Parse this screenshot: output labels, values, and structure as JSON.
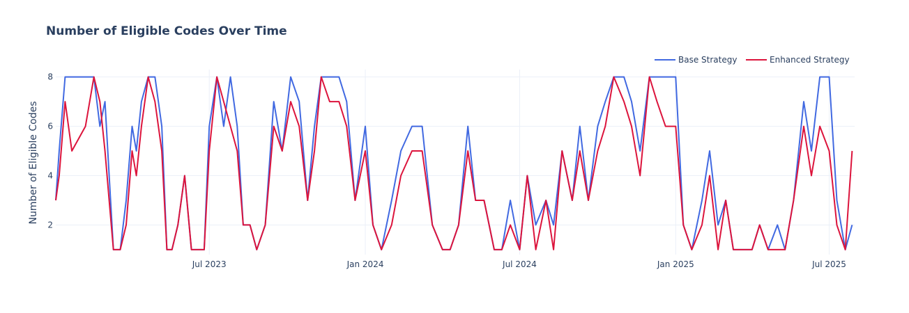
{
  "chart_data": {
    "type": "line",
    "title": "Number of Eligible Codes Over Time",
    "xlabel": "",
    "ylabel": "Number of Eligible Codes",
    "xlim": [
      "2023-01-01",
      "2025-07-31"
    ],
    "ylim": [
      0.8,
      8.3
    ],
    "x_ticks": [
      "Jul 2023",
      "Jan 2024",
      "Jul 2024",
      "Jan 2025",
      "Jul 2025"
    ],
    "y_ticks": [
      "2",
      "4",
      "6",
      "8"
    ],
    "grid": true,
    "legend_position": "top-right",
    "series": [
      {
        "name": "Base Strategy",
        "color": "#4169e1",
        "x": [
          "2023-01-01",
          "2023-01-05",
          "2023-01-12",
          "2023-01-20",
          "2023-02-05",
          "2023-02-15",
          "2023-02-22",
          "2023-02-28",
          "2023-03-05",
          "2023-03-10",
          "2023-03-18",
          "2023-03-25",
          "2023-04-01",
          "2023-04-06",
          "2023-04-12",
          "2023-04-20",
          "2023-04-28",
          "2023-05-06",
          "2023-05-12",
          "2023-05-18",
          "2023-05-25",
          "2023-06-02",
          "2023-06-10",
          "2023-06-18",
          "2023-06-25",
          "2023-07-01",
          "2023-07-10",
          "2023-07-18",
          "2023-07-26",
          "2023-08-03",
          "2023-08-10",
          "2023-08-18",
          "2023-08-26",
          "2023-09-05",
          "2023-09-15",
          "2023-09-25",
          "2023-10-05",
          "2023-10-15",
          "2023-10-25",
          "2023-11-02",
          "2023-11-10",
          "2023-11-20",
          "2023-12-01",
          "2023-12-10",
          "2023-12-20",
          "2024-01-01",
          "2024-01-10",
          "2024-01-20",
          "2024-02-01",
          "2024-02-12",
          "2024-02-25",
          "2024-03-08",
          "2024-03-20",
          "2024-04-01",
          "2024-04-10",
          "2024-04-20",
          "2024-05-01",
          "2024-05-10",
          "2024-05-20",
          "2024-06-01",
          "2024-06-10",
          "2024-06-20",
          "2024-07-01",
          "2024-07-10",
          "2024-07-20",
          "2024-08-01",
          "2024-08-10",
          "2024-08-20",
          "2024-09-01",
          "2024-09-10",
          "2024-09-20",
          "2024-10-01",
          "2024-10-10",
          "2024-10-20",
          "2024-11-01",
          "2024-11-10",
          "2024-11-20",
          "2024-12-01",
          "2024-12-10",
          "2024-12-20",
          "2025-01-01",
          "2025-01-10",
          "2025-01-20",
          "2025-02-01",
          "2025-02-10",
          "2025-02-20",
          "2025-03-01",
          "2025-03-10",
          "2025-03-20",
          "2025-04-01",
          "2025-04-10",
          "2025-04-20",
          "2025-05-01",
          "2025-05-10",
          "2025-05-20",
          "2025-06-01",
          "2025-06-10",
          "2025-06-20",
          "2025-07-01",
          "2025-07-10",
          "2025-07-20",
          "2025-07-28"
        ],
        "values": [
          3,
          5,
          8,
          8,
          8,
          8,
          6,
          7,
          4,
          1,
          1,
          3,
          6,
          5,
          7,
          8,
          8,
          6,
          1,
          1,
          2,
          4,
          1,
          1,
          1,
          6,
          8,
          6,
          8,
          6,
          2,
          2,
          1,
          2,
          7,
          5,
          8,
          7,
          3,
          6,
          8,
          8,
          8,
          7,
          3,
          6,
          2,
          1,
          3,
          5,
          6,
          6,
          2,
          1,
          1,
          2,
          6,
          3,
          3,
          1,
          1,
          3,
          1,
          4,
          2,
          3,
          2,
          5,
          3,
          6,
          3,
          6,
          7,
          8,
          8,
          7,
          5,
          8,
          8,
          8,
          8,
          2,
          1,
          3,
          5,
          2,
          3,
          1,
          1,
          1,
          2,
          1,
          2,
          1,
          3,
          7,
          5,
          8,
          8,
          3,
          1,
          2
        ]
      },
      {
        "name": "Enhanced Strategy",
        "color": "#dc143c",
        "x": [
          "2023-01-01",
          "2023-01-05",
          "2023-01-12",
          "2023-01-20",
          "2023-02-05",
          "2023-02-15",
          "2023-02-22",
          "2023-02-28",
          "2023-03-05",
          "2023-03-10",
          "2023-03-18",
          "2023-03-25",
          "2023-04-01",
          "2023-04-06",
          "2023-04-12",
          "2023-04-20",
          "2023-04-28",
          "2023-05-06",
          "2023-05-12",
          "2023-05-18",
          "2023-05-25",
          "2023-06-02",
          "2023-06-10",
          "2023-06-18",
          "2023-06-25",
          "2023-07-01",
          "2023-07-10",
          "2023-07-18",
          "2023-07-26",
          "2023-08-03",
          "2023-08-10",
          "2023-08-18",
          "2023-08-26",
          "2023-09-05",
          "2023-09-15",
          "2023-09-25",
          "2023-10-05",
          "2023-10-15",
          "2023-10-25",
          "2023-11-02",
          "2023-11-10",
          "2023-11-20",
          "2023-12-01",
          "2023-12-10",
          "2023-12-20",
          "2024-01-01",
          "2024-01-10",
          "2024-01-20",
          "2024-02-01",
          "2024-02-12",
          "2024-02-25",
          "2024-03-08",
          "2024-03-20",
          "2024-04-01",
          "2024-04-10",
          "2024-04-20",
          "2024-05-01",
          "2024-05-10",
          "2024-05-20",
          "2024-06-01",
          "2024-06-10",
          "2024-06-20",
          "2024-07-01",
          "2024-07-10",
          "2024-07-20",
          "2024-08-01",
          "2024-08-10",
          "2024-08-20",
          "2024-09-01",
          "2024-09-10",
          "2024-09-20",
          "2024-10-01",
          "2024-10-10",
          "2024-10-20",
          "2024-11-01",
          "2024-11-10",
          "2024-11-20",
          "2024-12-01",
          "2024-12-10",
          "2024-12-20",
          "2025-01-01",
          "2025-01-10",
          "2025-01-20",
          "2025-02-01",
          "2025-02-10",
          "2025-02-20",
          "2025-03-01",
          "2025-03-10",
          "2025-03-20",
          "2025-04-01",
          "2025-04-10",
          "2025-04-20",
          "2025-05-01",
          "2025-05-10",
          "2025-05-20",
          "2025-06-01",
          "2025-06-10",
          "2025-06-20",
          "2025-07-01",
          "2025-07-10",
          "2025-07-20",
          "2025-07-28"
        ],
        "values": [
          3,
          4,
          7,
          5,
          6,
          8,
          7,
          5,
          3,
          1,
          1,
          2,
          5,
          4,
          6,
          8,
          7,
          5,
          1,
          1,
          2,
          4,
          1,
          1,
          1,
          5,
          8,
          7,
          6,
          5,
          2,
          2,
          1,
          2,
          6,
          5,
          7,
          6,
          3,
          5,
          8,
          7,
          7,
          6,
          3,
          5,
          2,
          1,
          2,
          4,
          5,
          5,
          2,
          1,
          1,
          2,
          5,
          3,
          3,
          1,
          1,
          2,
          1,
          4,
          1,
          3,
          1,
          5,
          3,
          5,
          3,
          5,
          6,
          8,
          7,
          6,
          4,
          8,
          7,
          6,
          6,
          2,
          1,
          2,
          4,
          1,
          3,
          1,
          1,
          1,
          2,
          1,
          1,
          1,
          3,
          6,
          4,
          6,
          5,
          2,
          1,
          5
        ]
      }
    ]
  }
}
